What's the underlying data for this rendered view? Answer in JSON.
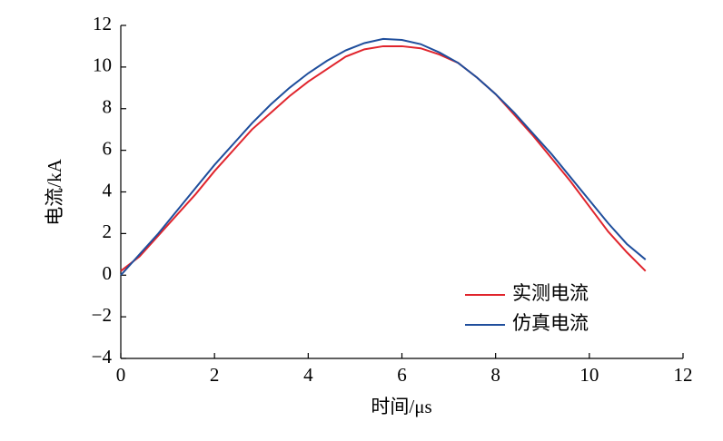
{
  "chart_data": {
    "type": "line",
    "xlabel": "时间/μs",
    "ylabel": "电流/kA",
    "x": [
      0,
      0.4,
      0.8,
      1.2,
      1.6,
      2.0,
      2.4,
      2.8,
      3.2,
      3.6,
      4.0,
      4.4,
      4.8,
      5.2,
      5.6,
      6.0,
      6.4,
      6.8,
      7.2,
      7.6,
      8.0,
      8.4,
      8.8,
      9.2,
      9.6,
      10.0,
      10.4,
      10.8,
      11.2
    ],
    "series": [
      {
        "name": "实测电流",
        "color": "#e0242c",
        "values": [
          0.2,
          0.9,
          1.9,
          2.9,
          3.9,
          5.0,
          6.0,
          7.0,
          7.8,
          8.6,
          9.3,
          9.9,
          10.5,
          10.85,
          11.0,
          11.0,
          10.9,
          10.6,
          10.2,
          9.5,
          8.7,
          7.7,
          6.7,
          5.6,
          4.5,
          3.3,
          2.1,
          1.1,
          0.2
        ]
      },
      {
        "name": "仿真电流",
        "color": "#1f4e9c",
        "values": [
          0,
          1.0,
          2.0,
          3.1,
          4.2,
          5.3,
          6.3,
          7.3,
          8.2,
          9.0,
          9.7,
          10.3,
          10.8,
          11.15,
          11.35,
          11.3,
          11.1,
          10.7,
          10.2,
          9.5,
          8.7,
          7.8,
          6.8,
          5.8,
          4.7,
          3.6,
          2.5,
          1.5,
          0.75
        ]
      }
    ],
    "xlim": [
      0,
      12
    ],
    "xticks": [
      0,
      2,
      4,
      6,
      8,
      10,
      12
    ],
    "ylim": [
      -4,
      12
    ],
    "yticks": [
      {
        "value": -4,
        "label": "−4"
      },
      {
        "value": -2,
        "label": "−2"
      },
      0,
      2,
      4,
      6,
      8,
      10,
      12
    ],
    "legend": "lower right"
  }
}
